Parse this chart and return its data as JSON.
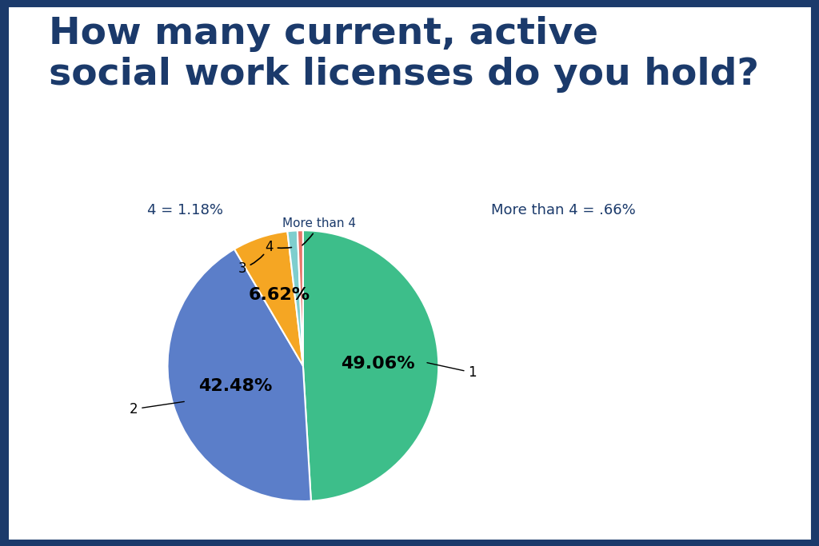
{
  "title": "How many current, active\nsocial work licenses do you hold?",
  "slices": [
    {
      "label": "1",
      "pct": 49.06,
      "color": "#3DBE8A",
      "text_label": "49.06%"
    },
    {
      "label": "2",
      "pct": 42.48,
      "color": "#5B7EC9",
      "text_label": "42.48%"
    },
    {
      "label": "3",
      "pct": 6.62,
      "color": "#F5A623",
      "text_label": "6.62%"
    },
    {
      "label": "4",
      "pct": 1.18,
      "color": "#7ECECE",
      "text_label": ""
    },
    {
      "label": "More than 4",
      "pct": 0.66,
      "color": "#E8766A",
      "text_label": ""
    }
  ],
  "title_color": "#1B3A6B",
  "title_fontsize": 34,
  "label_fontsize": 12,
  "pct_fontsize": 16,
  "bg_color": "#FFFFFF",
  "border_color": "#1B3A6B",
  "border_width": 8
}
